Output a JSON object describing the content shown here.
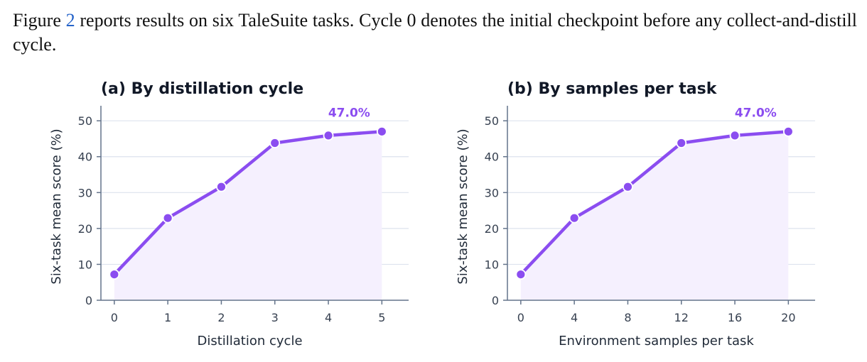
{
  "caption": {
    "before_ref": "Figure ",
    "ref": "2",
    "after_ref": " reports results on six TaleSuite tasks. Cycle 0 denotes the initial checkpoint before any collect-and-distill cycle."
  },
  "colors": {
    "line": "#8b4df0",
    "fill": "#f5f0fe",
    "grid": "#dde3ee",
    "axis": "#64748b"
  },
  "chart_data": [
    {
      "type": "line",
      "title": "(a) By distillation cycle",
      "xlabel": "Distillation cycle",
      "ylabel": "Six-task mean score (%)",
      "x": [
        0,
        1,
        2,
        3,
        4,
        5
      ],
      "x_tick_labels": [
        "0",
        "1",
        "2",
        "3",
        "4",
        "5"
      ],
      "xlim": [
        -0.25,
        5.5
      ],
      "ylim": [
        0,
        53
      ],
      "y_ticks": [
        0,
        10,
        20,
        30,
        40,
        50
      ],
      "grid": "horizontal",
      "area_fill": true,
      "series": [
        {
          "values": [
            7.2,
            22.9,
            31.6,
            43.8,
            45.9,
            47.0
          ]
        }
      ],
      "annotation": {
        "text": "47.0%",
        "x": 5,
        "y": 47.0
      }
    },
    {
      "type": "line",
      "title": "(b) By samples per task",
      "xlabel": "Environment samples per task",
      "ylabel": "Six-task mean score (%)",
      "x": [
        0,
        4,
        8,
        12,
        16,
        20
      ],
      "x_tick_labels": [
        "0",
        "4",
        "8",
        "12",
        "16",
        "20"
      ],
      "xlim": [
        -1,
        22
      ],
      "ylim": [
        0,
        53
      ],
      "y_ticks": [
        0,
        10,
        20,
        30,
        40,
        50
      ],
      "grid": "horizontal",
      "area_fill": true,
      "series": [
        {
          "values": [
            7.2,
            22.9,
            31.6,
            43.8,
            45.9,
            47.0
          ]
        }
      ],
      "annotation": {
        "text": "47.0%",
        "x": 20,
        "y": 47.0
      }
    }
  ]
}
